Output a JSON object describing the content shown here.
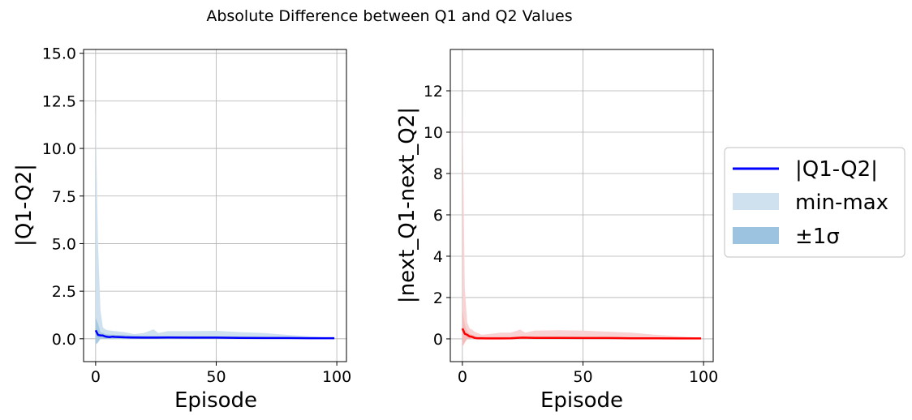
{
  "figure": {
    "title": "Absolute Difference between Q1 and Q2 Values"
  },
  "legend": {
    "placement": "right-center, outside axes",
    "entries": [
      {
        "label": "|Q1-Q2|",
        "kind": "line"
      },
      {
        "label": "min-max",
        "kind": "patch",
        "color": "#cfe1ee"
      },
      {
        "label": "±1σ",
        "kind": "patch",
        "color": "#9cc3df"
      }
    ]
  },
  "chart_data": [
    {
      "type": "line",
      "title": "",
      "xlabel": "Episode",
      "ylabel": "|Q1-Q2|",
      "xlim": [
        -5,
        104
      ],
      "ylim": [
        -1.2,
        15.2
      ],
      "xticks": [
        0,
        50,
        100
      ],
      "yticks": [
        0.0,
        2.5,
        5.0,
        7.5,
        10.0,
        12.5,
        15.0
      ],
      "ytick_labels": [
        "0.0",
        "2.5",
        "5.0",
        "7.5",
        "10.0",
        "12.5",
        "15.0"
      ],
      "grid": true,
      "colors": {
        "mean": "#0000ff",
        "minmax": "#cfe1ee",
        "std": "#9cc3df"
      },
      "series": [
        {
          "name": "|Q1-Q2|",
          "x": [
            0,
            1,
            2,
            3,
            4,
            5,
            6,
            7,
            8,
            10,
            12,
            15,
            20,
            25,
            30,
            40,
            50,
            60,
            70,
            80,
            90,
            99
          ],
          "values": [
            0.45,
            0.2,
            0.18,
            0.17,
            0.12,
            0.1,
            0.09,
            0.11,
            0.1,
            0.09,
            0.08,
            0.07,
            0.06,
            0.06,
            0.07,
            0.06,
            0.06,
            0.05,
            0.04,
            0.04,
            0.03,
            0.03
          ]
        },
        {
          "name": "min-max",
          "x": [
            0,
            1,
            2,
            3,
            4,
            5,
            8,
            12,
            16,
            20,
            24,
            26,
            30,
            40,
            50,
            60,
            70,
            80,
            90,
            99
          ],
          "upper": [
            12.0,
            5.0,
            1.5,
            0.6,
            0.5,
            0.45,
            0.4,
            0.35,
            0.25,
            0.3,
            0.5,
            0.3,
            0.4,
            0.4,
            0.42,
            0.35,
            0.3,
            0.2,
            0.12,
            0.05
          ],
          "lower": [
            -0.3,
            -0.1,
            0.0,
            0.0,
            0.0,
            0.0,
            0.0,
            0.0,
            0.0,
            0.0,
            0.0,
            0.0,
            0.0,
            0.0,
            0.0,
            0.0,
            0.0,
            0.0,
            0.0,
            0.0
          ]
        },
        {
          "name": "±1σ",
          "x": [
            0,
            1,
            2,
            3,
            4,
            6,
            10,
            20,
            30,
            50,
            70,
            90,
            99
          ],
          "upper": [
            1.1,
            0.8,
            0.35,
            0.3,
            0.25,
            0.22,
            0.2,
            0.15,
            0.14,
            0.13,
            0.1,
            0.07,
            0.05
          ],
          "lower": [
            -0.3,
            -0.2,
            0.0,
            0.02,
            0.0,
            0.0,
            0.0,
            0.0,
            0.0,
            0.0,
            0.0,
            0.0,
            0.0
          ]
        }
      ]
    },
    {
      "type": "line",
      "title": "",
      "xlabel": "Episode",
      "ylabel": "|next_Q1-next_Q2|",
      "xlim": [
        -5,
        104
      ],
      "ylim": [
        -1.1,
        14.0
      ],
      "xticks": [
        0,
        50,
        100
      ],
      "yticks": [
        0,
        2,
        4,
        6,
        8,
        10,
        12
      ],
      "ytick_labels": [
        "0",
        "2",
        "4",
        "6",
        "8",
        "10",
        "12"
      ],
      "grid": true,
      "colors": {
        "mean": "#ff0000",
        "minmax": "#f9d3d3",
        "std": "#f5b5b5"
      },
      "series": [
        {
          "name": "|next_Q1-next_Q2|",
          "x": [
            0,
            1,
            2,
            3,
            4,
            5,
            6,
            8,
            10,
            15,
            20,
            25,
            30,
            40,
            50,
            60,
            70,
            80,
            90,
            99
          ],
          "values": [
            0.5,
            0.25,
            0.2,
            0.12,
            0.1,
            0.05,
            0.03,
            0.03,
            0.02,
            0.02,
            0.03,
            0.06,
            0.05,
            0.05,
            0.04,
            0.04,
            0.03,
            0.03,
            0.02,
            0.02
          ]
        },
        {
          "name": "min-max",
          "x": [
            0,
            1,
            2,
            3,
            4,
            5,
            8,
            12,
            16,
            20,
            24,
            26,
            30,
            40,
            50,
            60,
            70,
            80,
            90,
            99
          ],
          "upper": [
            11.5,
            2.5,
            0.8,
            0.5,
            0.45,
            0.35,
            0.2,
            0.25,
            0.3,
            0.3,
            0.45,
            0.3,
            0.4,
            0.42,
            0.4,
            0.35,
            0.3,
            0.2,
            0.12,
            0.05
          ],
          "lower": [
            -0.4,
            -0.2,
            0.0,
            0.0,
            0.0,
            0.0,
            0.0,
            0.0,
            0.0,
            0.0,
            0.0,
            0.0,
            0.0,
            0.0,
            0.0,
            0.0,
            0.0,
            0.0,
            0.0,
            0.0
          ]
        },
        {
          "name": "±1σ",
          "x": [
            0,
            1,
            2,
            3,
            4,
            6,
            10,
            20,
            30,
            50,
            70,
            90,
            99
          ],
          "upper": [
            1.4,
            0.7,
            0.35,
            0.25,
            0.2,
            0.12,
            0.1,
            0.1,
            0.12,
            0.1,
            0.08,
            0.06,
            0.04
          ],
          "lower": [
            -0.35,
            -0.15,
            0.0,
            0.0,
            0.0,
            0.0,
            0.0,
            0.0,
            0.0,
            0.0,
            0.0,
            0.0,
            0.0
          ]
        }
      ]
    }
  ]
}
